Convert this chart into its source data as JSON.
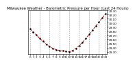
{
  "title": "Milwaukee Weather - Barometric Pressure per Hour (Last 24 Hours)",
  "hours": [
    0,
    1,
    2,
    3,
    4,
    5,
    6,
    7,
    8,
    9,
    10,
    11,
    12,
    13,
    14,
    15,
    16,
    17,
    18,
    19,
    20,
    21,
    22,
    23
  ],
  "pressure": [
    29.85,
    29.78,
    29.7,
    29.62,
    29.55,
    29.48,
    29.42,
    29.38,
    29.35,
    29.33,
    29.32,
    29.31,
    29.3,
    29.33,
    29.38,
    29.45,
    29.53,
    29.62,
    29.72,
    29.82,
    29.92,
    30.02,
    30.12,
    30.22
  ],
  "line_color": "#cc0000",
  "marker_color": "#000000",
  "bg_color": "#ffffff",
  "grid_color": "#999999",
  "title_fontsize": 3.8,
  "tick_fontsize": 3.0,
  "ylim_min": 29.25,
  "ylim_max": 30.3,
  "yticks": [
    29.3,
    29.4,
    29.5,
    29.6,
    29.7,
    29.8,
    29.9,
    30.0,
    30.1,
    30.2,
    30.3
  ],
  "grid_hours": [
    0,
    3,
    6,
    9,
    12,
    15,
    18,
    21,
    23
  ]
}
